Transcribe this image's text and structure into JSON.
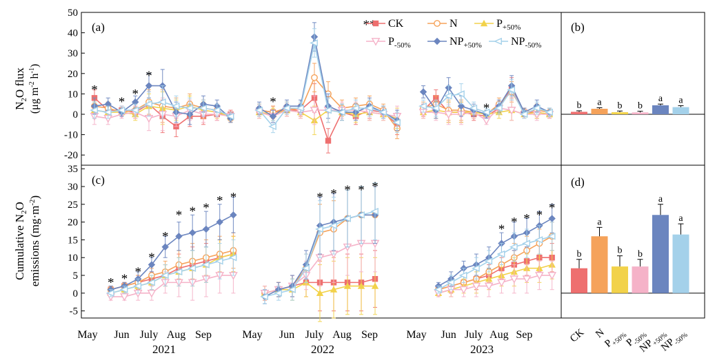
{
  "colors": {
    "CK": "#ee6f6f",
    "N": "#f5a25a",
    "P+50%": "#f2d24a",
    "P-50%": "#f5b2c8",
    "NP+50%": "#6b85bf",
    "NP-50%": "#a4d1ea"
  },
  "legend": [
    {
      "key": "CK",
      "main": "CK",
      "sub": "",
      "marker": "square"
    },
    {
      "key": "N",
      "main": "N",
      "sub": "",
      "marker": "circle"
    },
    {
      "key": "P+50%",
      "main": "P",
      "sub": "+50%",
      "marker": "triangle"
    },
    {
      "key": "P-50%",
      "main": "P",
      "sub": "-50%",
      "marker": "tridown"
    },
    {
      "key": "NP+50%",
      "main": "NP",
      "sub": "+50%",
      "marker": "diamond"
    },
    {
      "key": "NP-50%",
      "main": "NP",
      "sub": "-50%",
      "marker": "left"
    }
  ],
  "chart_data": [
    {
      "panel": "(a)",
      "type": "line",
      "ylabel": [
        "N2O flux",
        "(μg m-2 h-1)"
      ],
      "ylim": [
        -25,
        50
      ],
      "yticks": [
        -20,
        -10,
        0,
        10,
        20,
        30,
        40,
        50
      ],
      "segments": [
        {
          "year": "2021",
          "months": [
            "May",
            "Jun",
            "July",
            "Aug",
            "Sep"
          ],
          "x": [
            0,
            0.5,
            1,
            1.5,
            2,
            2.5,
            3,
            3.5,
            4,
            4.5,
            5
          ],
          "series": {
            "CK": [
              8,
              2,
              2,
              1,
              5,
              -1,
              -6,
              -1,
              -1,
              0,
              0
            ],
            "N": [
              4,
              3,
              1,
              2,
              6,
              4,
              3,
              5,
              3,
              2,
              -2
            ],
            "P+50%": [
              2,
              1,
              1,
              0,
              4,
              3,
              2,
              4,
              2,
              1,
              -1
            ],
            "P-50%": [
              -1,
              -2,
              0,
              1,
              -2,
              0,
              -1,
              2,
              0,
              0,
              -1
            ],
            "NP+50%": [
              4,
              5,
              1,
              6,
              14,
              14,
              1,
              0,
              5,
              4,
              -2
            ],
            "NP-50%": [
              2,
              1,
              2,
              2,
              5,
              6,
              4,
              3,
              3,
              2,
              -1
            ]
          },
          "err": [
            4,
            3,
            2,
            3,
            6,
            8,
            5,
            5,
            4,
            3,
            2
          ],
          "stars": [
            {
              "x": 0,
              "y": 12,
              "label": "*"
            },
            {
              "x": 1,
              "y": 6,
              "label": "*"
            },
            {
              "x": 1.5,
              "y": 10,
              "label": "*"
            },
            {
              "x": 2,
              "y": 19,
              "label": "*"
            }
          ]
        },
        {
          "year": "2022",
          "months": [
            "May",
            "Jun",
            "July",
            "Aug",
            "Sep"
          ],
          "x": [
            0,
            0.5,
            1,
            1.5,
            2,
            2.5,
            3,
            3.5,
            4,
            4.5,
            5
          ],
          "series": {
            "CK": [
              2,
              1,
              2,
              2,
              8,
              -13,
              1,
              -1,
              2,
              1,
              -5
            ],
            "N": [
              2,
              1,
              3,
              2,
              18,
              10,
              3,
              4,
              5,
              2,
              -7
            ],
            "P+50%": [
              1,
              0,
              2,
              1,
              -3,
              2,
              1,
              0,
              1,
              0,
              -2
            ],
            "P-50%": [
              1,
              -1,
              2,
              1,
              2,
              2,
              2,
              2,
              1,
              0,
              -1
            ],
            "NP+50%": [
              3,
              -1,
              4,
              4,
              38,
              4,
              1,
              1,
              4,
              1,
              -3
            ],
            "NP-50%": [
              2,
              -6,
              3,
              3,
              35,
              2,
              1,
              3,
              3,
              1,
              -4
            ]
          },
          "err": [
            3,
            3,
            3,
            3,
            7,
            6,
            4,
            4,
            4,
            3,
            5
          ],
          "stars": [
            {
              "x": 0.5,
              "y": 6,
              "label": "*"
            },
            {
              "x": 4,
              "y": 44,
              "label": "**"
            }
          ]
        },
        {
          "year": "2023",
          "months": [
            "May",
            "Jun",
            "July",
            "Aug",
            "Sep"
          ],
          "x": [
            0,
            0.5,
            1,
            1.5,
            2,
            2.5,
            3,
            3.5,
            4,
            4.5,
            5
          ],
          "series": {
            "CK": [
              2,
              8,
              1,
              1,
              0,
              -1,
              3,
              13,
              1,
              1,
              0
            ],
            "N": [
              3,
              5,
              2,
              2,
              1,
              0,
              5,
              11,
              1,
              2,
              1
            ],
            "P+50%": [
              1,
              2,
              1,
              1,
              1,
              0,
              1,
              2,
              0,
              1,
              0
            ],
            "P-50%": [
              1,
              1,
              0,
              0,
              1,
              -3,
              3,
              2,
              0,
              0,
              0
            ],
            "NP+50%": [
              11,
              2,
              13,
              4,
              2,
              0,
              4,
              14,
              1,
              4,
              1
            ],
            "NP-50%": [
              4,
              3,
              9,
              10,
              3,
              1,
              3,
              12,
              0,
              3,
              1
            ]
          },
          "err": [
            3,
            4,
            5,
            5,
            3,
            2,
            3,
            5,
            2,
            3,
            2
          ],
          "stars": [
            {
              "x": 2.5,
              "y": 3,
              "label": "*"
            }
          ]
        }
      ]
    },
    {
      "panel": "(b)",
      "type": "bar",
      "categories": [
        "CK",
        "N",
        "P+50%",
        "P-50%",
        "NP+50%",
        "NP-50%"
      ],
      "values": [
        1.2,
        2.7,
        1.0,
        0.9,
        4.4,
        3.5
      ],
      "errors": [
        0.5,
        0.5,
        0.6,
        0.6,
        0.6,
        0.7
      ],
      "letters": [
        "b",
        "a",
        "b",
        "b",
        "a",
        "a"
      ],
      "ylim": [
        -25,
        50
      ]
    },
    {
      "panel": "(c)",
      "type": "line",
      "ylabel": [
        "Cumulative N2O",
        "emissions (mg·m-2)"
      ],
      "ylim": [
        -7,
        36
      ],
      "yticks": [
        -5,
        0,
        5,
        10,
        15,
        20,
        25,
        30,
        35
      ],
      "segments": [
        {
          "year": "2021",
          "months": [
            "May",
            "Jun",
            "July",
            "Aug",
            "Sep"
          ],
          "x": [
            0.6,
            1.1,
            1.6,
            2.1,
            2.6,
            3.1,
            3.6,
            4.1,
            4.6,
            5.1
          ],
          "series": {
            "CK": [
              1,
              2,
              3,
              4,
              5,
              7,
              8,
              9,
              10,
              11
            ],
            "N": [
              1,
              2,
              3,
              5,
              6,
              8,
              9,
              10,
              11,
              12
            ],
            "P+50%": [
              0,
              1,
              2,
              3,
              5,
              6,
              7,
              8,
              10,
              11
            ],
            "P-50%": [
              -1,
              -1,
              0,
              0,
              3,
              3,
              3,
              4,
              5,
              5
            ],
            "NP+50%": [
              1,
              2,
              4,
              8,
              13,
              16,
              17,
              18,
              20,
              22
            ],
            "NP-50%": [
              0,
              1,
              2,
              3,
              5,
              6,
              7,
              8,
              9,
              10
            ]
          },
          "err": [
            1,
            1,
            2,
            2,
            3,
            4,
            5,
            5,
            5,
            5
          ],
          "stars": [
            {
              "x": 0.6,
              "y": 3,
              "label": "*"
            },
            {
              "x": 1.1,
              "y": 4,
              "label": "*"
            },
            {
              "x": 1.6,
              "y": 6,
              "label": "*"
            },
            {
              "x": 2.1,
              "y": 10,
              "label": "*"
            },
            {
              "x": 2.6,
              "y": 16,
              "label": "*"
            },
            {
              "x": 3.1,
              "y": 22,
              "label": "*"
            },
            {
              "x": 3.6,
              "y": 23,
              "label": "*"
            },
            {
              "x": 4.1,
              "y": 24,
              "label": "*"
            },
            {
              "x": 4.6,
              "y": 26,
              "label": "*"
            },
            {
              "x": 5.1,
              "y": 27,
              "label": "*"
            }
          ]
        },
        {
          "year": "2022",
          "months": [
            "May",
            "Jun",
            "July",
            "Aug",
            "Sep"
          ],
          "x": [
            0.2,
            0.7,
            1.2,
            1.7,
            2.2,
            2.7,
            3.2,
            3.7,
            4.2
          ],
          "series": {
            "CK": [
              0,
              1,
              2,
              3,
              3,
              3,
              3,
              3,
              4
            ],
            "N": [
              0,
              1,
              2,
              7,
              17,
              18,
              21,
              22,
              22
            ],
            "P+50%": [
              0,
              1,
              1,
              3,
              0,
              1,
              2,
              2,
              2
            ],
            "P-50%": [
              0,
              1,
              2,
              5,
              10,
              11,
              13,
              14,
              14
            ],
            "NP+50%": [
              -1,
              1,
              2,
              8,
              19,
              20,
              21,
              22,
              22
            ],
            "NP-50%": [
              -1,
              0,
              1,
              7,
              18,
              19,
              21,
              22,
              23
            ]
          },
          "err": [
            2,
            2,
            3,
            4,
            8,
            8,
            8,
            8,
            8
          ],
          "stars": [
            {
              "x": 2.2,
              "y": 27,
              "label": "*"
            },
            {
              "x": 2.7,
              "y": 28,
              "label": "*"
            },
            {
              "x": 3.2,
              "y": 29,
              "label": "*"
            },
            {
              "x": 3.7,
              "y": 29,
              "label": "*"
            },
            {
              "x": 4.2,
              "y": 30,
              "label": "*"
            }
          ]
        },
        {
          "year": "2023",
          "months": [
            "May",
            "Jun",
            "July",
            "Aug",
            "Sep"
          ],
          "x": [
            0.6,
            1.1,
            1.6,
            2.1,
            2.6,
            3.1,
            3.6,
            4.1,
            4.6,
            5.1
          ],
          "series": {
            "CK": [
              1,
              2,
              3,
              4,
              5,
              7,
              8,
              9,
              10,
              10
            ],
            "N": [
              1,
              2,
              3,
              4,
              6,
              8,
              10,
              12,
              14,
              16
            ],
            "P+50%": [
              0,
              1,
              2,
              3,
              4,
              5,
              6,
              7,
              7,
              8
            ],
            "P-50%": [
              0,
              1,
              1,
              2,
              2,
              3,
              4,
              4,
              5,
              5
            ],
            "NP+50%": [
              2,
              4,
              7,
              8,
              10,
              14,
              16,
              17,
              19,
              21
            ],
            "NP-50%": [
              1,
              3,
              5,
              7,
              9,
              11,
              13,
              14,
              15,
              16
            ]
          },
          "err": [
            1,
            2,
            2,
            3,
            3,
            3,
            4,
            4,
            4,
            4
          ],
          "stars": [
            {
              "x": 3.1,
              "y": 18,
              "label": "*"
            },
            {
              "x": 3.6,
              "y": 20,
              "label": "*"
            },
            {
              "x": 4.1,
              "y": 21,
              "label": "*"
            },
            {
              "x": 4.6,
              "y": 22,
              "label": "*"
            },
            {
              "x": 5.1,
              "y": 24,
              "label": "*"
            }
          ]
        }
      ]
    },
    {
      "panel": "(d)",
      "type": "bar",
      "categories": [
        "CK",
        "N",
        "P+50%",
        "P-50%",
        "NP+50%",
        "NP-50%"
      ],
      "values": [
        7,
        16,
        7.5,
        7.5,
        22,
        16.5
      ],
      "errors": [
        2.5,
        2.5,
        3,
        2,
        3,
        3
      ],
      "letters": [
        "b",
        "a",
        "b",
        "b",
        "a",
        "a"
      ],
      "ylim": [
        -7,
        36
      ]
    }
  ],
  "xaxis": {
    "years": [
      "2021",
      "2022",
      "2023"
    ],
    "months": [
      "May",
      "Jun",
      "July",
      "Aug",
      "Sep"
    ]
  },
  "barlabels": [
    {
      "main": "CK",
      "sub": ""
    },
    {
      "main": "N",
      "sub": ""
    },
    {
      "main": "P",
      "sub": "+50%"
    },
    {
      "main": "P",
      "sub": "-50%"
    },
    {
      "main": "NP",
      "sub": "+50%"
    },
    {
      "main": "NP",
      "sub": "-50%"
    }
  ]
}
